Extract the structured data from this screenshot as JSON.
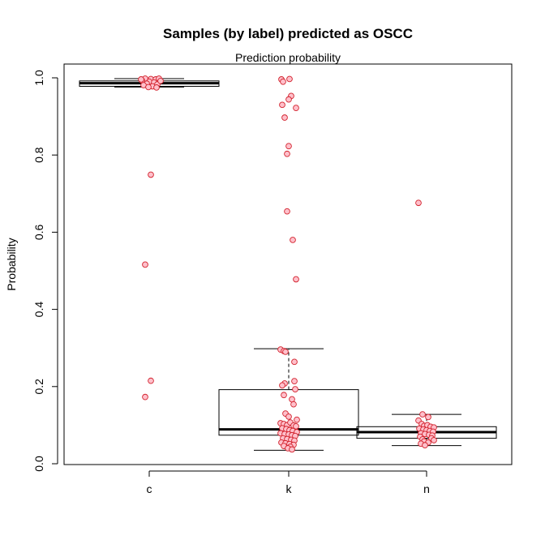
{
  "chart_data": {
    "type": "box",
    "title": "Samples (by label) predicted as OSCC",
    "subtitle": "Prediction probability",
    "xlabel": "",
    "ylabel": "Probability",
    "ylim": [
      0.0,
      1.0
    ],
    "yticks": [
      0.0,
      0.2,
      0.4,
      0.6,
      0.8,
      1.0
    ],
    "ytick_labels": [
      "0.0",
      "0.2",
      "0.4",
      "0.6",
      "0.8",
      "1.0"
    ],
    "categories": [
      "c",
      "k",
      "n"
    ],
    "grid": false,
    "legend": "none",
    "point_fill": "#ffc0cb",
    "point_stroke": "#d2222d",
    "boxes": [
      {
        "category": "c",
        "whisker_low": 0.976,
        "q1": 0.978,
        "median": 0.986,
        "q3": 0.992,
        "whisker_high": 0.998
      },
      {
        "category": "k",
        "whisker_low": 0.035,
        "q1": 0.074,
        "median": 0.089,
        "q3": 0.192,
        "whisker_high": 0.298
      },
      {
        "category": "n",
        "whisker_low": 0.047,
        "q1": 0.066,
        "median": 0.082,
        "q3": 0.096,
        "whisker_high": 0.128
      }
    ],
    "points": [
      {
        "x": "c",
        "xj": -0.05,
        "y": 0.998
      },
      {
        "x": "c",
        "xj": 0.02,
        "y": 0.997
      },
      {
        "x": "c",
        "xj": 0.08,
        "y": 0.996
      },
      {
        "x": "c",
        "xj": 0.12,
        "y": 0.998
      },
      {
        "x": "c",
        "xj": -0.09,
        "y": 0.993
      },
      {
        "x": "c",
        "xj": 0.0,
        "y": 0.99
      },
      {
        "x": "c",
        "xj": 0.06,
        "y": 0.988
      },
      {
        "x": "c",
        "xj": -0.03,
        "y": 0.985
      },
      {
        "x": "c",
        "xj": 0.1,
        "y": 0.983
      },
      {
        "x": "c",
        "xj": -0.07,
        "y": 0.981
      },
      {
        "x": "c",
        "xj": 0.04,
        "y": 0.978
      },
      {
        "x": "c",
        "xj": -0.01,
        "y": 0.976
      },
      {
        "x": "c",
        "xj": 0.09,
        "y": 0.975
      },
      {
        "x": "c",
        "xj": 0.14,
        "y": 0.992
      },
      {
        "x": "c",
        "xj": -0.1,
        "y": 0.996
      },
      {
        "x": "c",
        "xj": 0.02,
        "y": 0.749
      },
      {
        "x": "c",
        "xj": -0.05,
        "y": 0.516
      },
      {
        "x": "c",
        "xj": 0.02,
        "y": 0.215
      },
      {
        "x": "c",
        "xj": -0.05,
        "y": 0.173
      },
      {
        "x": "k",
        "xj": -0.09,
        "y": 0.996
      },
      {
        "x": "k",
        "xj": -0.07,
        "y": 0.99
      },
      {
        "x": "k",
        "xj": 0.01,
        "y": 0.997
      },
      {
        "x": "k",
        "xj": 0.03,
        "y": 0.953
      },
      {
        "x": "k",
        "xj": 0.0,
        "y": 0.944
      },
      {
        "x": "k",
        "xj": -0.08,
        "y": 0.93
      },
      {
        "x": "k",
        "xj": 0.09,
        "y": 0.922
      },
      {
        "x": "k",
        "xj": -0.05,
        "y": 0.897
      },
      {
        "x": "k",
        "xj": 0.0,
        "y": 0.823
      },
      {
        "x": "k",
        "xj": -0.02,
        "y": 0.803
      },
      {
        "x": "k",
        "xj": -0.02,
        "y": 0.654
      },
      {
        "x": "k",
        "xj": 0.05,
        "y": 0.58
      },
      {
        "x": "k",
        "xj": 0.09,
        "y": 0.478
      },
      {
        "x": "k",
        "xj": -0.1,
        "y": 0.296
      },
      {
        "x": "k",
        "xj": -0.06,
        "y": 0.292
      },
      {
        "x": "k",
        "xj": -0.04,
        "y": 0.29
      },
      {
        "x": "k",
        "xj": 0.07,
        "y": 0.264
      },
      {
        "x": "k",
        "xj": -0.05,
        "y": 0.208
      },
      {
        "x": "k",
        "xj": -0.08,
        "y": 0.203
      },
      {
        "x": "k",
        "xj": 0.07,
        "y": 0.214
      },
      {
        "x": "k",
        "xj": 0.08,
        "y": 0.193
      },
      {
        "x": "k",
        "xj": -0.06,
        "y": 0.178
      },
      {
        "x": "k",
        "xj": 0.04,
        "y": 0.167
      },
      {
        "x": "k",
        "xj": 0.06,
        "y": 0.154
      },
      {
        "x": "k",
        "xj": -0.04,
        "y": 0.13
      },
      {
        "x": "k",
        "xj": 0.0,
        "y": 0.122
      },
      {
        "x": "k",
        "xj": 0.1,
        "y": 0.114
      },
      {
        "x": "k",
        "xj": -0.1,
        "y": 0.105
      },
      {
        "x": "k",
        "xj": -0.06,
        "y": 0.103
      },
      {
        "x": "k",
        "xj": -0.02,
        "y": 0.1
      },
      {
        "x": "k",
        "xj": 0.02,
        "y": 0.107
      },
      {
        "x": "k",
        "xj": 0.06,
        "y": 0.099
      },
      {
        "x": "k",
        "xj": 0.09,
        "y": 0.097
      },
      {
        "x": "k",
        "xj": -0.08,
        "y": 0.092
      },
      {
        "x": "k",
        "xj": -0.03,
        "y": 0.09
      },
      {
        "x": "k",
        "xj": 0.01,
        "y": 0.087
      },
      {
        "x": "k",
        "xj": 0.05,
        "y": 0.085
      },
      {
        "x": "k",
        "xj": 0.1,
        "y": 0.082
      },
      {
        "x": "k",
        "xj": -0.1,
        "y": 0.079
      },
      {
        "x": "k",
        "xj": -0.05,
        "y": 0.077
      },
      {
        "x": "k",
        "xj": 0.0,
        "y": 0.076
      },
      {
        "x": "k",
        "xj": 0.04,
        "y": 0.074
      },
      {
        "x": "k",
        "xj": 0.08,
        "y": 0.072
      },
      {
        "x": "k",
        "xj": -0.07,
        "y": 0.066
      },
      {
        "x": "k",
        "xj": -0.02,
        "y": 0.064
      },
      {
        "x": "k",
        "xj": 0.03,
        "y": 0.062
      },
      {
        "x": "k",
        "xj": 0.07,
        "y": 0.06
      },
      {
        "x": "k",
        "xj": -0.09,
        "y": 0.055
      },
      {
        "x": "k",
        "xj": -0.04,
        "y": 0.053
      },
      {
        "x": "k",
        "xj": 0.01,
        "y": 0.051
      },
      {
        "x": "k",
        "xj": 0.06,
        "y": 0.049
      },
      {
        "x": "k",
        "xj": -0.06,
        "y": 0.046
      },
      {
        "x": "k",
        "xj": 0.02,
        "y": 0.044
      },
      {
        "x": "k",
        "xj": -0.01,
        "y": 0.04
      },
      {
        "x": "k",
        "xj": 0.04,
        "y": 0.037
      },
      {
        "x": "n",
        "xj": -0.1,
        "y": 0.676
      },
      {
        "x": "n",
        "xj": -0.05,
        "y": 0.128
      },
      {
        "x": "n",
        "xj": 0.02,
        "y": 0.121
      },
      {
        "x": "n",
        "xj": -0.1,
        "y": 0.112
      },
      {
        "x": "n",
        "xj": -0.06,
        "y": 0.103
      },
      {
        "x": "n",
        "xj": -0.03,
        "y": 0.098
      },
      {
        "x": "n",
        "xj": 0.01,
        "y": 0.1
      },
      {
        "x": "n",
        "xj": 0.05,
        "y": 0.096
      },
      {
        "x": "n",
        "xj": 0.09,
        "y": 0.094
      },
      {
        "x": "n",
        "xj": -0.09,
        "y": 0.091
      },
      {
        "x": "n",
        "xj": -0.04,
        "y": 0.089
      },
      {
        "x": "n",
        "xj": 0.0,
        "y": 0.087
      },
      {
        "x": "n",
        "xj": 0.04,
        "y": 0.085
      },
      {
        "x": "n",
        "xj": 0.08,
        "y": 0.083
      },
      {
        "x": "n",
        "xj": -0.07,
        "y": 0.079
      },
      {
        "x": "n",
        "xj": -0.02,
        "y": 0.077
      },
      {
        "x": "n",
        "xj": 0.03,
        "y": 0.075
      },
      {
        "x": "n",
        "xj": 0.07,
        "y": 0.073
      },
      {
        "x": "n",
        "xj": -0.08,
        "y": 0.07
      },
      {
        "x": "n",
        "xj": 0.06,
        "y": 0.066
      },
      {
        "x": "n",
        "xj": -0.05,
        "y": 0.063
      },
      {
        "x": "n",
        "xj": 0.09,
        "y": 0.061
      },
      {
        "x": "n",
        "xj": -0.03,
        "y": 0.058
      },
      {
        "x": "n",
        "xj": 0.02,
        "y": 0.055
      },
      {
        "x": "n",
        "xj": -0.07,
        "y": 0.052
      },
      {
        "x": "n",
        "xj": -0.02,
        "y": 0.048
      }
    ]
  }
}
